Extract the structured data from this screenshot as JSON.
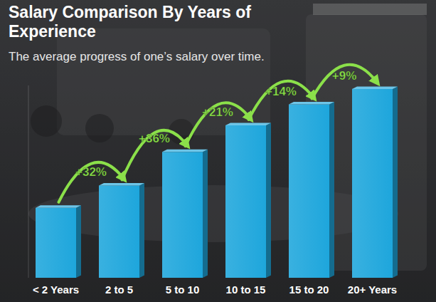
{
  "chart_data": {
    "type": "bar",
    "title": "Salary Comparison By Years of Experience",
    "subtitle": "The average progress of one’s salary over time.",
    "categories": [
      "< 2 Years",
      "2 to 5",
      "5 to 10",
      "10 to 15",
      "15 to 20",
      "20+ Years"
    ],
    "values": [
      100,
      132,
      180,
      218,
      248,
      270
    ],
    "color": "#1ea6dc",
    "ylim": [
      0,
      275
    ],
    "tick_labels": "x",
    "grid": false,
    "data_labels": false,
    "annotations": [
      "+32%",
      "+36%",
      "+21%",
      "+14%",
      "+9%"
    ]
  }
}
